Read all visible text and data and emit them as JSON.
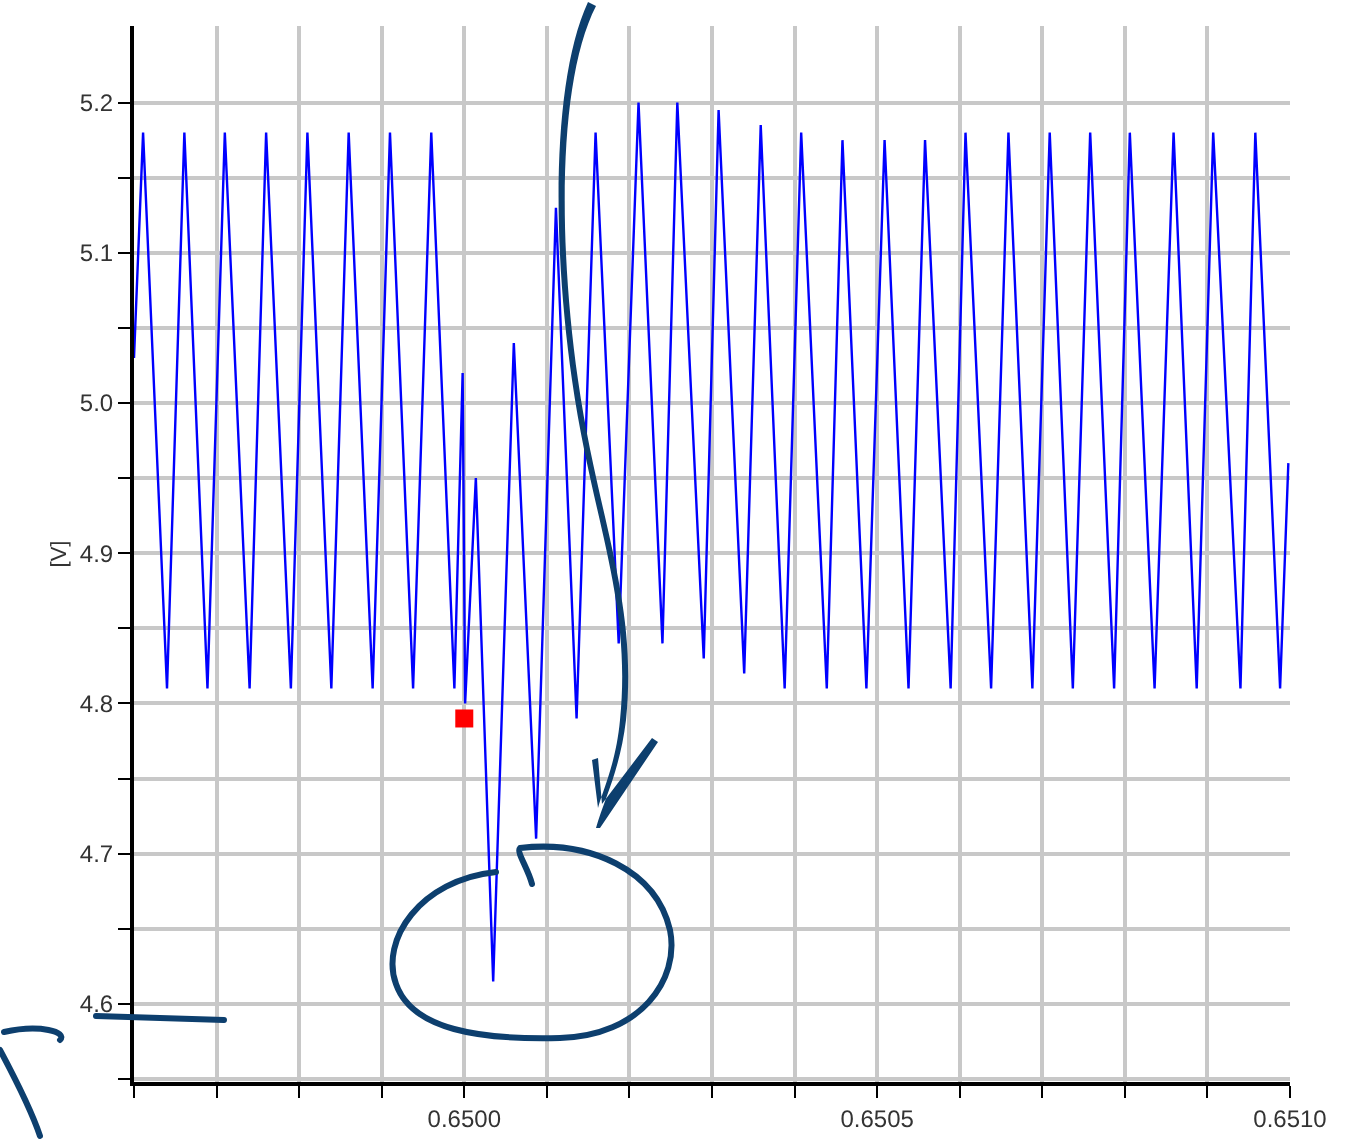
{
  "chart_data": {
    "type": "line",
    "ylabel": "[V]",
    "grid": true,
    "xlim": [
      0.6496,
      0.651
    ],
    "ylim": [
      4.548,
      5.251
    ],
    "xticks": [
      {
        "value": 0.6496,
        "label": null
      },
      {
        "value": 0.6497,
        "label": null
      },
      {
        "value": 0.6498,
        "label": null
      },
      {
        "value": 0.6499,
        "label": null
      },
      {
        "value": 0.65,
        "label": "0.6500"
      },
      {
        "value": 0.6501,
        "label": null
      },
      {
        "value": 0.6502,
        "label": null
      },
      {
        "value": 0.6503,
        "label": null
      },
      {
        "value": 0.6504,
        "label": null
      },
      {
        "value": 0.6505,
        "label": "0.6505"
      },
      {
        "value": 0.6506,
        "label": null
      },
      {
        "value": 0.6507,
        "label": null
      },
      {
        "value": 0.6508,
        "label": null
      },
      {
        "value": 0.6509,
        "label": null
      },
      {
        "value": 0.651,
        "label": "0.6510"
      }
    ],
    "yticks": [
      {
        "value": 4.55,
        "label": null
      },
      4.6,
      {
        "value": 4.65,
        "label": null
      },
      4.7,
      {
        "value": 4.75,
        "label": null
      },
      4.8,
      {
        "value": 4.85,
        "label": null
      },
      4.9,
      {
        "value": 4.95,
        "label": null
      },
      {
        "value": 5,
        "label": "5.0"
      },
      {
        "value": 5.05,
        "label": null
      },
      5.1,
      {
        "value": 5.15,
        "label": null
      },
      5.2
    ],
    "series": [
      {
        "type": "line",
        "color": "#0000ff",
        "marker": "none",
        "x": [
          0.6496,
          0.649611,
          0.64964,
          0.649661,
          0.649689,
          0.64971,
          0.64974,
          0.64976,
          0.64979,
          0.64981,
          0.649839,
          0.64986,
          0.649889,
          0.64991,
          0.649938,
          0.64996,
          0.649988,
          0.649998,
          0.650001,
          0.650014,
          0.650035,
          0.65006,
          0.650087,
          0.650111,
          0.650136,
          0.650159,
          0.650187,
          0.650211,
          0.65024,
          0.650258,
          0.65029,
          0.650308,
          0.650339,
          0.650359,
          0.650388,
          0.650408,
          0.650439,
          0.650458,
          0.650487,
          0.650509,
          0.650538,
          0.650558,
          0.650589,
          0.650607,
          0.650638,
          0.650659,
          0.650688,
          0.650709,
          0.650737,
          0.650758,
          0.650787,
          0.650806,
          0.650836,
          0.650859,
          0.650887,
          0.650907,
          0.65094,
          0.650958,
          0.650988,
          0.650998
        ],
        "values": [
          5.03,
          5.18,
          4.81,
          5.18,
          4.81,
          5.18,
          4.81,
          5.18,
          4.81,
          5.18,
          4.81,
          5.18,
          4.81,
          5.18,
          4.81,
          5.18,
          4.81,
          5.02,
          4.8,
          4.95,
          4.615,
          5.04,
          4.71,
          5.13,
          4.79,
          5.18,
          4.84,
          5.2,
          4.84,
          5.2,
          4.83,
          5.195,
          4.82,
          5.185,
          4.81,
          5.18,
          4.81,
          5.175,
          4.81,
          5.175,
          4.81,
          5.175,
          4.81,
          5.18,
          4.81,
          5.18,
          4.81,
          5.18,
          4.81,
          5.18,
          4.81,
          5.18,
          4.81,
          5.18,
          4.81,
          5.18,
          4.81,
          5.18,
          4.81,
          4.96
        ]
      },
      {
        "type": "scatter",
        "color": "#ff0000",
        "marker": "square",
        "x": [
          0.65
        ],
        "values": [
          4.79
        ]
      }
    ]
  }
}
